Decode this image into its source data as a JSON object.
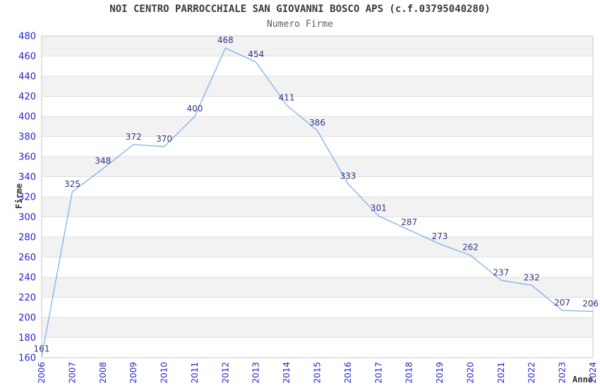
{
  "chart_data": {
    "type": "line",
    "title": "NOI CENTRO PARROCCHIALE SAN GIOVANNI BOSCO APS (c.f.03795040280)",
    "subtitle": "Numero Firme",
    "xlabel": "Anno",
    "ylabel": "Firme",
    "categories": [
      "2006",
      "2007",
      "2008",
      "2009",
      "2010",
      "2011",
      "2012",
      "2013",
      "2014",
      "2015",
      "2016",
      "2017",
      "2018",
      "2019",
      "2020",
      "2021",
      "2022",
      "2023",
      "2024"
    ],
    "values": [
      161,
      325,
      348,
      372,
      370,
      400,
      468,
      454,
      411,
      386,
      333,
      301,
      287,
      273,
      262,
      237,
      232,
      207,
      206
    ],
    "ylim": [
      160,
      480
    ],
    "ytick_step": 20,
    "legend": "none",
    "grid": "horizontal-gridlines-with-alternating-bands",
    "markers": "none",
    "data_labels": "above-points",
    "x_tick_rotation": -90,
    "colors": {
      "line": "#7db1e8",
      "tick_label": "#2424cc",
      "data_label": "#333384",
      "band": "#f2f2f2",
      "band_alt": "#ffffff",
      "grid_line": "#e0e0e0",
      "border": "#c9c9c9",
      "title": "#3a3a3a",
      "subtitle": "#5f5f5f",
      "axis_label": "#333333",
      "background": "#ffffff"
    }
  }
}
